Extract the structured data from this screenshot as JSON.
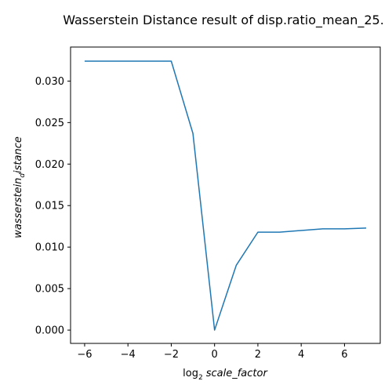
{
  "chart_data": {
    "type": "line",
    "title": "Wasserstein Distance result of disp.ratio_mean_25.",
    "xlabel": {
      "prefix": "log",
      "subscript": "2",
      "main": "scale_factor"
    },
    "ylabel": {
      "main": "wasserstein",
      "subscript": "d",
      "suffix": "istance"
    },
    "x": [
      -6,
      -5,
      -4,
      -3,
      -2,
      -1,
      0,
      1,
      2,
      3,
      4,
      5,
      6,
      7
    ],
    "series": [
      {
        "values": [
          0.0324,
          0.0324,
          0.0324,
          0.0324,
          0.0324,
          0.0237,
          0.0,
          0.0078,
          0.0118,
          0.0118,
          0.012,
          0.0122,
          0.0122,
          0.0123
        ],
        "color": "#1f77b4"
      }
    ],
    "xlim": [
      -6.65,
      7.65
    ],
    "ylim": [
      -0.0016,
      0.0341
    ],
    "xticks": [
      -6,
      -4,
      -2,
      0,
      2,
      4,
      6
    ],
    "xtick_labels": [
      "−6",
      "−4",
      "−2",
      "0",
      "2",
      "4",
      "6"
    ],
    "yticks": [
      0.0,
      0.005,
      0.01,
      0.015,
      0.02,
      0.025,
      0.03
    ],
    "ytick_labels": [
      "0.000",
      "0.005",
      "0.010",
      "0.015",
      "0.020",
      "0.025",
      "0.030"
    ],
    "grid": false,
    "legend": "none"
  }
}
